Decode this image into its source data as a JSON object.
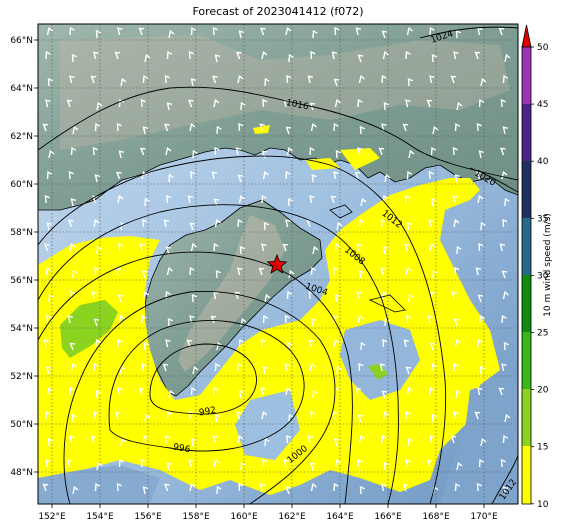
{
  "title": "Forecast of 2023041412 (f072)",
  "map": {
    "lon_ticks": [
      "152°E",
      "154°E",
      "156°E",
      "158°E",
      "160°E",
      "162°E",
      "164°E",
      "166°E",
      "168°E",
      "170°E"
    ],
    "lat_ticks": [
      "66°N",
      "64°N",
      "62°N",
      "60°N",
      "58°N",
      "56°N",
      "54°N",
      "52°N",
      "50°N",
      "48°N"
    ],
    "isobar_labels": [
      "1024",
      "1016",
      "1020",
      "1012",
      "1008",
      "1004",
      "992",
      "996",
      "1000",
      "1012"
    ],
    "marker": "star-marker",
    "colors": {
      "ocean": "#8fb3d6",
      "land": "#7f9f95",
      "wind_10_15": "#ffff00",
      "wind_15_20": "#8ad321",
      "wind_20_25": "#39b818",
      "wind_25_30": "#118a11",
      "wind_30_35": "#256a8a",
      "wind_35_40": "#1f3160",
      "wind_40_45": "#4b2485",
      "wind_45_50": "#9a35b3",
      "extend": "#e00000"
    }
  },
  "colorbar": {
    "label": "10 m wind speed (m/s)",
    "ticks": [
      "50",
      "45",
      "40",
      "35",
      "30",
      "25",
      "20",
      "15",
      "10"
    ]
  }
}
